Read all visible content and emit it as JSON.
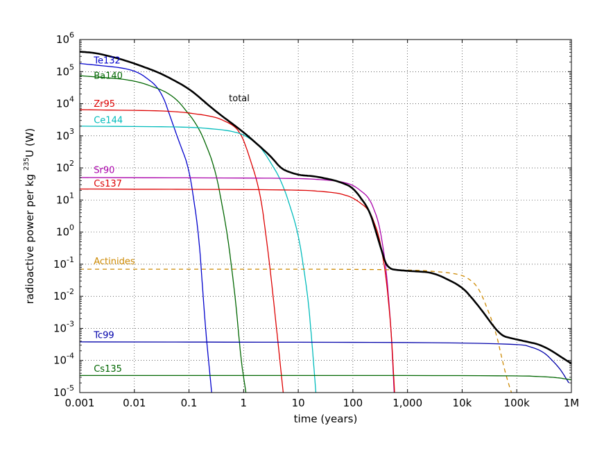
{
  "chart_data": {
    "type": "line",
    "xscale": "log",
    "yscale": "log",
    "xlim": [
      0.001,
      1000000
    ],
    "ylim": [
      1e-05,
      1000000
    ],
    "grid": true,
    "grid_style": "dotted",
    "xlabel": "time (years)",
    "ylabel": {
      "before": "radioactive power per kg ",
      "sup": "235",
      "after": "U (W)"
    },
    "xticks": [
      {
        "value": 0.001,
        "label": "0.001"
      },
      {
        "value": 0.01,
        "label": "0.01"
      },
      {
        "value": 0.1,
        "label": "0.1"
      },
      {
        "value": 1,
        "label": "1"
      },
      {
        "value": 10,
        "label": "10"
      },
      {
        "value": 100,
        "label": "100"
      },
      {
        "value": 1000,
        "label": "1,000"
      },
      {
        "value": 10000,
        "label": "10k"
      },
      {
        "value": 100000,
        "label": "100k"
      },
      {
        "value": 1000000,
        "label": "1M"
      }
    ],
    "yticks": [
      {
        "value": 1e-05,
        "base": "10",
        "exp": "-5"
      },
      {
        "value": 0.0001,
        "base": "10",
        "exp": "-4"
      },
      {
        "value": 0.001,
        "base": "10",
        "exp": "-3"
      },
      {
        "value": 0.01,
        "base": "10",
        "exp": "-2"
      },
      {
        "value": 0.1,
        "base": "10",
        "exp": "-1"
      },
      {
        "value": 1,
        "base": "10",
        "exp": "0"
      },
      {
        "value": 10,
        "base": "10",
        "exp": "1"
      },
      {
        "value": 100,
        "base": "10",
        "exp": "2"
      },
      {
        "value": 1000,
        "base": "10",
        "exp": "3"
      },
      {
        "value": 10000,
        "base": "10",
        "exp": "4"
      },
      {
        "value": 100000,
        "base": "10",
        "exp": "5"
      },
      {
        "value": 1000000,
        "base": "10",
        "exp": "6"
      }
    ],
    "series": [
      {
        "name": "Te132",
        "color": "#0000cc",
        "style": "solid",
        "x": [
          0.001,
          0.01,
          0.03,
          0.06,
          0.1,
          0.15,
          0.2,
          0.26
        ],
        "y": [
          180000,
          120000,
          30000,
          1000,
          100,
          1,
          0.001,
          1e-05
        ],
        "label_at": [
          0.0012,
          180000
        ]
      },
      {
        "name": "Ba140",
        "color": "#006600",
        "style": "solid",
        "x": [
          0.001,
          0.01,
          0.05,
          0.15,
          0.3,
          0.5,
          0.7,
          0.9,
          1.1
        ],
        "y": [
          75000,
          55000,
          20000,
          2000,
          100,
          1,
          0.01,
          0.0001,
          1e-05
        ],
        "label_at": [
          0.0012,
          60000
        ]
      },
      {
        "name": "Zr95",
        "color": "#dd0000",
        "style": "solid",
        "x": [
          0.001,
          0.05,
          0.3,
          0.7,
          1,
          2,
          3,
          4,
          5.3
        ],
        "y": [
          6500,
          6000,
          4000,
          2000,
          800,
          20,
          0.1,
          0.001,
          1e-05
        ],
        "label_at": [
          0.0012,
          8000
        ]
      },
      {
        "name": "Ce144",
        "color": "#00bbbb",
        "style": "solid",
        "x": [
          0.001,
          0.1,
          0.5,
          1,
          2,
          5,
          10,
          15,
          18,
          21
        ],
        "y": [
          2000,
          1900,
          1500,
          1100,
          500,
          40,
          1,
          0.01,
          0.0003,
          1e-05
        ],
        "label_at": [
          0.0012,
          2500
        ]
      },
      {
        "name": "Sr90",
        "color": "#aa00aa",
        "style": "solid",
        "x": [
          0.001,
          10,
          50,
          100,
          200,
          300,
          400,
          500,
          570
        ],
        "y": [
          50,
          48,
          40,
          30,
          12,
          2,
          0.1,
          0.001,
          1e-05
        ],
        "label_at": [
          0.0012,
          70
        ]
      },
      {
        "name": "Cs137",
        "color": "#dd0000",
        "style": "solid",
        "x": [
          0.001,
          10,
          50,
          100,
          200,
          300,
          400,
          500,
          580
        ],
        "y": [
          22,
          21,
          17,
          12,
          5,
          0.8,
          0.05,
          0.001,
          1e-05
        ],
        "label_at": [
          0.0012,
          26
        ]
      },
      {
        "name": "Actinides",
        "color": "#cc8800",
        "style": "dashed",
        "x": [
          0.001,
          1000,
          10000,
          20000,
          40000,
          60000,
          70000,
          80000
        ],
        "y": [
          0.07,
          0.07,
          0.05,
          0.02,
          0.001,
          5e-05,
          2e-05,
          1e-05
        ],
        "label_at": [
          0.0012,
          0.1
        ]
      },
      {
        "name": "Tc99",
        "color": "#0000aa",
        "style": "solid",
        "x": [
          0.001,
          100000,
          300000,
          600000,
          900000
        ],
        "y": [
          0.00038,
          0.00036,
          0.0002,
          6e-05,
          2e-05
        ],
        "label_at": [
          0.0012,
          0.0005
        ]
      },
      {
        "name": "Cs135",
        "color": "#006600",
        "style": "solid",
        "x": [
          0.001,
          100000,
          500000,
          1000000
        ],
        "y": [
          3.4e-05,
          3.4e-05,
          3e-05,
          2.5e-05
        ],
        "label_at": [
          0.0012,
          4.5e-05
        ]
      },
      {
        "name": "total",
        "color": "#000000",
        "style": "bold",
        "x": [
          0.001,
          0.002,
          0.005,
          0.01,
          0.03,
          0.1,
          0.3,
          1,
          3,
          5,
          10,
          20,
          50,
          100,
          200,
          300,
          400,
          500,
          700,
          1000,
          3000,
          10000,
          20000,
          50000,
          100000,
          300000,
          1000000
        ],
        "y": [
          420000,
          380000,
          260000,
          180000,
          90000,
          30000,
          6000,
          1300,
          250,
          90,
          60,
          55,
          40,
          25,
          5,
          0.5,
          0.1,
          0.07,
          0.065,
          0.062,
          0.055,
          0.02,
          0.005,
          0.0006,
          0.00045,
          0.0003,
          8e-05
        ],
        "label_at": [
          0.3,
          12000
        ]
      }
    ]
  }
}
